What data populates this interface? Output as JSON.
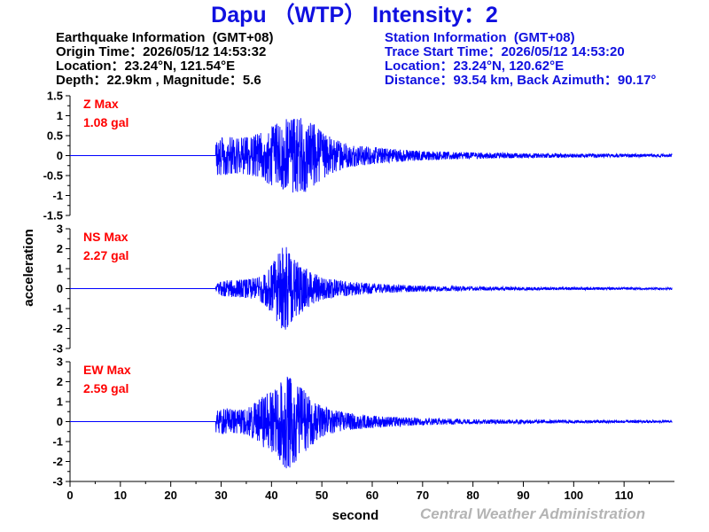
{
  "title": "Dapu （WTP） Intensity：2",
  "earthquake_info": {
    "header": "Earthquake Information  (GMT+08)",
    "origin_time": "Origin Time：2026/05/12 14:53:32",
    "location": "Location：23.24°N, 121.54°E",
    "depth_magnitude": "Depth：22.9km , Magnitude：5.6"
  },
  "station_info": {
    "header": "Station Information  (GMT+08)",
    "trace_start": "Trace Start Time：2026/05/12 14:53:20",
    "location": "Location：23.24°N, 120.62°E",
    "distance": "Distance：93.54 km, Back Azimuth：90.17°"
  },
  "footer": "Central Weather Administration",
  "colors": {
    "title": "#1010e0",
    "trace": "#0000ff",
    "max_label": "#ff0000",
    "footer": "#b4b4b4"
  },
  "chart_data": {
    "type": "line",
    "xlabel": "second",
    "ylabel": "acceleration",
    "xlim": [
      0,
      120
    ],
    "x_ticks": [
      "0",
      "10",
      "20",
      "30",
      "40",
      "50",
      "60",
      "70",
      "80",
      "90",
      "100",
      "110"
    ],
    "panels": [
      {
        "component": "Z",
        "max_label": "Z Max",
        "max_value": "1.08 gal",
        "peak": 1.08,
        "ylim": [
          -1.5,
          1.5
        ],
        "y_ticks": [
          "1.5",
          "1",
          "0.5",
          "0",
          "-0.5",
          "-1",
          "-1.5"
        ],
        "envelope": [
          [
            0,
            0
          ],
          [
            28.9,
            0
          ],
          [
            29,
            0.5
          ],
          [
            30,
            0.5
          ],
          [
            33,
            0.45
          ],
          [
            36,
            0.5
          ],
          [
            38,
            0.6
          ],
          [
            40,
            0.75
          ],
          [
            42,
            0.85
          ],
          [
            44,
            1.0
          ],
          [
            45,
            1.05
          ],
          [
            46,
            0.95
          ],
          [
            48,
            0.85
          ],
          [
            50,
            0.6
          ],
          [
            52,
            0.45
          ],
          [
            55,
            0.3
          ],
          [
            60,
            0.22
          ],
          [
            65,
            0.16
          ],
          [
            70,
            0.12
          ],
          [
            80,
            0.08
          ],
          [
            90,
            0.06
          ],
          [
            100,
            0.05
          ],
          [
            110,
            0.04
          ],
          [
            119,
            0.04
          ]
        ]
      },
      {
        "component": "NS",
        "max_label": "NS Max",
        "max_value": "2.27 gal",
        "peak": 2.27,
        "ylim": [
          -3,
          3
        ],
        "y_ticks": [
          "3",
          "2",
          "1",
          "0",
          "-1",
          "-2",
          "-3"
        ],
        "envelope": [
          [
            0,
            0
          ],
          [
            28.9,
            0
          ],
          [
            29,
            0.2
          ],
          [
            30,
            0.4
          ],
          [
            34,
            0.45
          ],
          [
            37,
            0.55
          ],
          [
            39,
            0.9
          ],
          [
            41,
            1.6
          ],
          [
            42,
            2.25
          ],
          [
            43,
            2.1
          ],
          [
            44,
            1.7
          ],
          [
            46,
            1.2
          ],
          [
            48,
            0.8
          ],
          [
            50,
            0.6
          ],
          [
            54,
            0.4
          ],
          [
            60,
            0.25
          ],
          [
            70,
            0.15
          ],
          [
            80,
            0.1
          ],
          [
            100,
            0.07
          ],
          [
            119,
            0.05
          ]
        ]
      },
      {
        "component": "EW",
        "max_label": "EW Max",
        "max_value": "2.59 gal",
        "peak": 2.59,
        "ylim": [
          -3,
          3
        ],
        "y_ticks": [
          "3",
          "2",
          "1",
          "0",
          "-1",
          "-2",
          "-3"
        ],
        "envelope": [
          [
            0,
            0
          ],
          [
            28.9,
            0
          ],
          [
            29,
            0.6
          ],
          [
            31,
            0.7
          ],
          [
            34,
            0.6
          ],
          [
            36,
            0.8
          ],
          [
            38,
            1.2
          ],
          [
            40,
            1.6
          ],
          [
            42,
            2.0
          ],
          [
            43,
            2.55
          ],
          [
            44,
            2.2
          ],
          [
            46,
            1.7
          ],
          [
            48,
            1.2
          ],
          [
            50,
            0.8
          ],
          [
            52,
            0.6
          ],
          [
            55,
            0.45
          ],
          [
            60,
            0.3
          ],
          [
            70,
            0.18
          ],
          [
            80,
            0.12
          ],
          [
            100,
            0.08
          ],
          [
            119,
            0.06
          ]
        ]
      }
    ]
  }
}
